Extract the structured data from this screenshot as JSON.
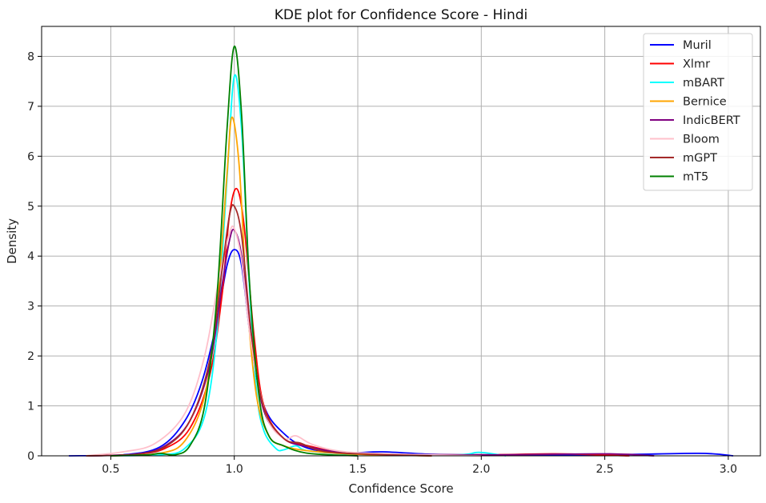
{
  "chart_data": {
    "type": "line",
    "title": "KDE plot for Confidence Score - Hindi",
    "xlabel": "Confidence Score",
    "ylabel": "Density",
    "xlim": [
      0.22,
      3.13
    ],
    "ylim": [
      0,
      8.6
    ],
    "xticks": [
      0.5,
      1.0,
      1.5,
      2.0,
      2.5,
      3.0
    ],
    "xtick_labels": [
      "0.5",
      "1.0",
      "1.5",
      "2.0",
      "2.5",
      "3.0"
    ],
    "yticks": [
      0,
      1,
      2,
      3,
      4,
      5,
      6,
      7,
      8
    ],
    "ytick_labels": [
      "0",
      "1",
      "2",
      "3",
      "4",
      "5",
      "6",
      "7",
      "8"
    ],
    "grid": true,
    "legend_position": "top-right",
    "series": [
      {
        "name": "Muril",
        "color": "#0000ff",
        "x": [
          0.33,
          0.55,
          0.7,
          0.8,
          0.87,
          0.93,
          0.97,
          1.0,
          1.03,
          1.07,
          1.12,
          1.2,
          1.3,
          1.45,
          1.6,
          1.8,
          2.0,
          2.5,
          2.88,
          3.02
        ],
        "y": [
          0.0,
          0.02,
          0.18,
          0.7,
          1.5,
          2.7,
          3.8,
          4.13,
          3.8,
          2.2,
          1.0,
          0.45,
          0.15,
          0.06,
          0.08,
          0.03,
          0.02,
          0.02,
          0.05,
          0.0
        ]
      },
      {
        "name": "Xlmr",
        "color": "#ff0000",
        "x": [
          0.4,
          0.6,
          0.72,
          0.82,
          0.9,
          0.95,
          0.98,
          1.01,
          1.04,
          1.08,
          1.12,
          1.2,
          1.3,
          1.5,
          2.0,
          2.3,
          2.6
        ],
        "y": [
          0.0,
          0.03,
          0.15,
          0.55,
          1.6,
          3.2,
          4.8,
          5.35,
          4.6,
          2.4,
          1.0,
          0.35,
          0.2,
          0.04,
          0.02,
          0.04,
          0.0
        ]
      },
      {
        "name": "mBART",
        "color": "#00ffff",
        "x": [
          0.5,
          0.7,
          0.8,
          0.88,
          0.93,
          0.97,
          1.0,
          1.03,
          1.06,
          1.09,
          1.12,
          1.17,
          1.2,
          1.25,
          1.3,
          1.5,
          1.9,
          1.99,
          2.1
        ],
        "y": [
          0.0,
          0.02,
          0.15,
          0.8,
          2.5,
          5.5,
          7.6,
          6.5,
          3.5,
          1.3,
          0.5,
          0.14,
          0.12,
          0.2,
          0.1,
          0.03,
          0.02,
          0.07,
          0.0
        ]
      },
      {
        "name": "Bernice",
        "color": "#ffa500",
        "x": [
          0.5,
          0.7,
          0.8,
          0.88,
          0.93,
          0.97,
          0.99,
          1.02,
          1.05,
          1.09,
          1.14,
          1.2,
          1.3,
          1.5,
          1.8
        ],
        "y": [
          0.0,
          0.05,
          0.3,
          1.2,
          3.0,
          5.6,
          6.78,
          5.8,
          3.2,
          1.2,
          0.4,
          0.2,
          0.1,
          0.03,
          0.0
        ]
      },
      {
        "name": "IndicBERT",
        "color": "#800080",
        "x": [
          0.4,
          0.6,
          0.72,
          0.82,
          0.9,
          0.95,
          0.98,
          1.0,
          1.03,
          1.07,
          1.12,
          1.2,
          1.3,
          1.5,
          2.0,
          2.5,
          2.7
        ],
        "y": [
          0.0,
          0.03,
          0.2,
          0.7,
          1.8,
          3.4,
          4.3,
          4.52,
          4.0,
          2.3,
          0.9,
          0.35,
          0.18,
          0.05,
          0.02,
          0.04,
          0.0
        ]
      },
      {
        "name": "Bloom",
        "color": "#ffc0cb",
        "x": [
          0.4,
          0.55,
          0.68,
          0.8,
          0.88,
          0.94,
          0.98,
          1.0,
          1.03,
          1.07,
          1.13,
          1.2,
          1.25,
          1.32,
          1.45,
          1.7,
          2.0
        ],
        "y": [
          0.0,
          0.08,
          0.25,
          0.85,
          2.0,
          3.6,
          4.45,
          4.55,
          3.9,
          2.2,
          0.8,
          0.35,
          0.4,
          0.22,
          0.08,
          0.03,
          0.0
        ]
      },
      {
        "name": "mGPT",
        "color": "#a52a2a",
        "x": [
          0.4,
          0.6,
          0.72,
          0.82,
          0.9,
          0.95,
          0.98,
          1.0,
          1.03,
          1.07,
          1.12,
          1.2,
          1.27,
          1.35,
          1.5,
          1.8
        ],
        "y": [
          0.0,
          0.03,
          0.18,
          0.7,
          1.9,
          3.7,
          4.8,
          5.0,
          4.4,
          2.4,
          0.95,
          0.35,
          0.25,
          0.1,
          0.04,
          0.0
        ]
      },
      {
        "name": "mT5",
        "color": "#008000",
        "x": [
          0.5,
          0.65,
          0.7,
          0.76,
          0.82,
          0.88,
          0.93,
          0.97,
          1.0,
          1.03,
          1.06,
          1.1,
          1.14,
          1.2,
          1.3,
          1.5
        ],
        "y": [
          0.0,
          0.02,
          0.05,
          0.02,
          0.2,
          1.0,
          3.2,
          6.5,
          8.2,
          6.8,
          3.6,
          1.2,
          0.4,
          0.2,
          0.05,
          0.0
        ]
      }
    ]
  }
}
